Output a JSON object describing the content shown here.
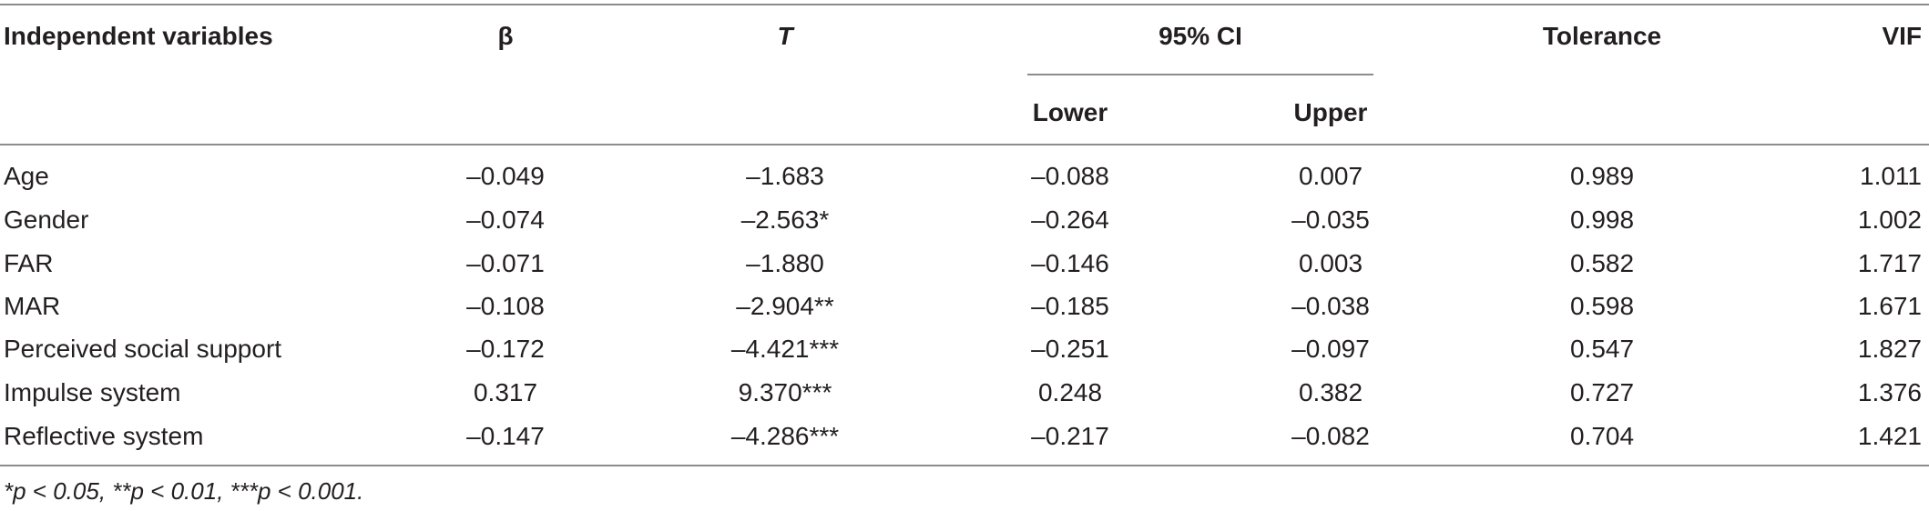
{
  "table": {
    "headers": {
      "variable": "Independent variables",
      "beta": "β",
      "t": "T",
      "ci": "95% CI",
      "lower": "Lower",
      "upper": "Upper",
      "tolerance": "Tolerance",
      "vif": "VIF"
    },
    "rows": [
      {
        "variable": "Age",
        "beta": "–0.049",
        "t": "–1.683",
        "lower": "–0.088",
        "upper": "0.007",
        "tolerance": "0.989",
        "vif": "1.011"
      },
      {
        "variable": "Gender",
        "beta": "–0.074",
        "t": "–2.563*",
        "lower": "–0.264",
        "upper": "–0.035",
        "tolerance": "0.998",
        "vif": "1.002"
      },
      {
        "variable": "FAR",
        "beta": "–0.071",
        "t": "–1.880",
        "lower": "–0.146",
        "upper": "0.003",
        "tolerance": "0.582",
        "vif": "1.717"
      },
      {
        "variable": "MAR",
        "beta": "–0.108",
        "t": "–2.904**",
        "lower": "–0.185",
        "upper": "–0.038",
        "tolerance": "0.598",
        "vif": "1.671"
      },
      {
        "variable": "Perceived social support",
        "beta": "–0.172",
        "t": "–4.421***",
        "lower": "–0.251",
        "upper": "–0.097",
        "tolerance": "0.547",
        "vif": "1.827"
      },
      {
        "variable": "Impulse system",
        "beta": "0.317",
        "t": "9.370***",
        "lower": "0.248",
        "upper": "0.382",
        "tolerance": "0.727",
        "vif": "1.376"
      },
      {
        "variable": "Reflective system",
        "beta": "–0.147",
        "t": "–4.286***",
        "lower": "–0.217",
        "upper": "–0.082",
        "tolerance": "0.704",
        "vif": "1.421"
      }
    ],
    "footnote": "*p < 0.05, **p < 0.01, ***p < 0.001."
  }
}
